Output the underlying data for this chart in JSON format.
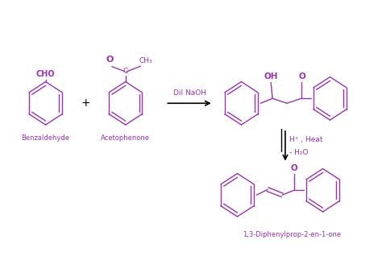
{
  "bg_color": "#ffffff",
  "mol_color": "#9b30b0",
  "arrow_color": "#000000",
  "text_color": "#9b30b0",
  "figsize": [
    4.74,
    3.18
  ],
  "dpi": 100,
  "benzaldehyde_label": "Benzaldehyde",
  "acetophenone_label": "Acetophenone",
  "product2_label": "1,3-Diphenylprop-2-en-1-one",
  "reagent1": "Dil NaOH",
  "reagent2_line1": "H⁺ , Heat",
  "reagent2_line2": "- H₂O",
  "cho_label": "CHO",
  "o_label": "O",
  "c_label": "C",
  "ch3_label": "CH₃",
  "oh_label": "OH",
  "o2_label": "O",
  "o3_label": "O"
}
